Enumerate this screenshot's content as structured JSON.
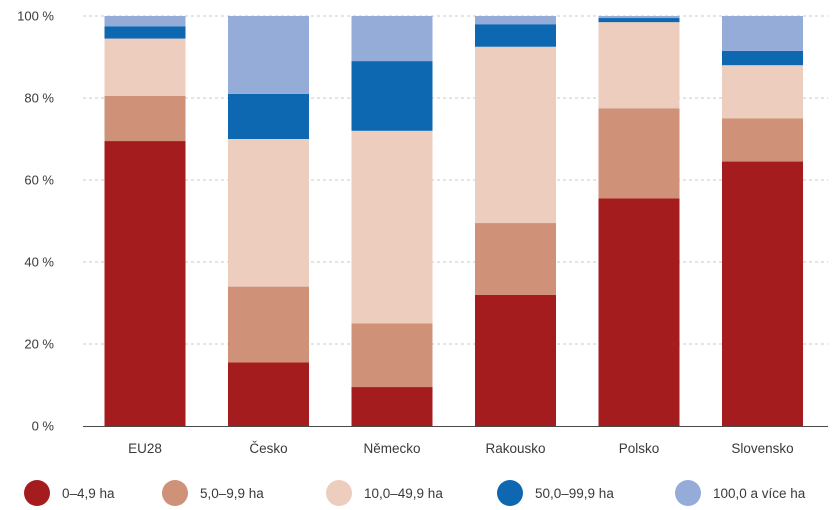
{
  "chart_data": {
    "type": "bar",
    "stacked": true,
    "categories": [
      "EU28",
      "Česko",
      "Německo",
      "Rakousko",
      "Polsko",
      "Slovensko"
    ],
    "series": [
      {
        "name": "0–4,9 ha",
        "color": "#a51c1e",
        "values": [
          69.5,
          15.5,
          9.5,
          32.0,
          55.5,
          64.5
        ]
      },
      {
        "name": "5,0–9,9 ha",
        "color": "#cf9178",
        "values": [
          11.0,
          18.5,
          15.5,
          17.5,
          22.0,
          10.5
        ]
      },
      {
        "name": "10,0–49,9 ha",
        "color": "#edcdbd",
        "values": [
          14.0,
          36.0,
          47.0,
          43.0,
          21.0,
          13.0
        ]
      },
      {
        "name": "50,0–99,9 ha",
        "color": "#0e67b1",
        "values": [
          3.0,
          11.0,
          17.0,
          5.5,
          1.0,
          3.5
        ]
      },
      {
        "name": "100,0 a více ha",
        "color": "#95acd9",
        "values": [
          2.5,
          19.0,
          11.0,
          2.0,
          0.5,
          8.5
        ]
      }
    ],
    "y_ticks": [
      "0 %",
      "20 %",
      "40 %",
      "60 %",
      "80 %",
      "100 %"
    ],
    "ylim": [
      0,
      100
    ],
    "grid": true,
    "legend_position": "bottom"
  }
}
